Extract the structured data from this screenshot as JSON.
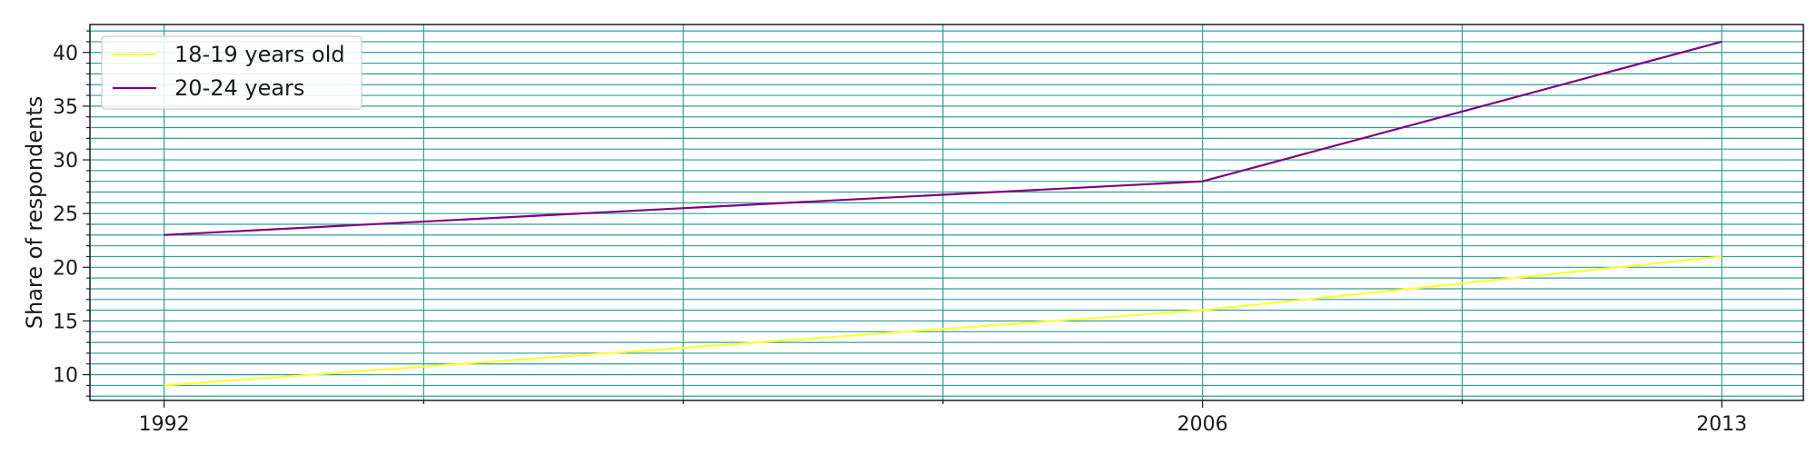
{
  "chart_data": {
    "type": "line",
    "title": "",
    "xlabel": "",
    "ylabel": "Share of respondents",
    "x_ticks": [
      1992,
      2006,
      2013
    ],
    "xlim": [
      1991,
      2014.1
    ],
    "ylim": [
      7.6,
      42.6
    ],
    "y_ticks": [
      10,
      15,
      20,
      25,
      30,
      35,
      40
    ],
    "y_minor_step": 1,
    "x_grid": [
      1992,
      1995.5,
      1999,
      2002.5,
      2006,
      2009.5,
      2013
    ],
    "grid": true,
    "grid_color": "#2aa198",
    "legend_position": "top-left",
    "series": [
      {
        "name": "18-19 years old",
        "color": "#ffff33",
        "x": [
          1992,
          2006,
          2013
        ],
        "values": [
          9,
          16,
          21
        ]
      },
      {
        "name": "20-24 years",
        "color": "#800080",
        "x": [
          1992,
          2006,
          2013
        ],
        "values": [
          23,
          28,
          41
        ]
      }
    ]
  }
}
